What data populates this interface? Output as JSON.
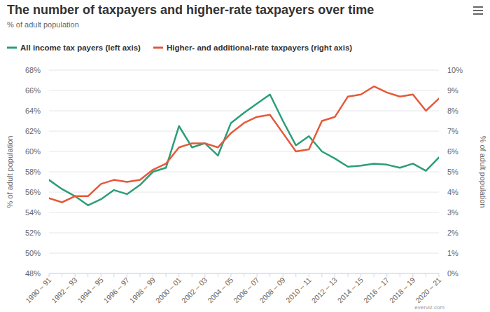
{
  "chart_data": {
    "type": "line",
    "title": "The number of taxpayers and higher-rate taxpayers over time",
    "subtitle": "% of adult population",
    "y_label": "% of adult population",
    "y2_label": "% of adult population",
    "credits": "everviz.com",
    "categories": [
      "1990 – 91",
      null,
      "1992 – 93",
      null,
      "1994 – 95",
      null,
      "1996 – 97",
      null,
      "1998 – 99",
      null,
      "2000 – 01",
      null,
      "2002 – 03",
      null,
      "2004 – 05",
      null,
      "2006 – 07",
      null,
      "2008 – 09",
      null,
      "2010 – 11",
      null,
      "2012 – 13",
      null,
      "2014 – 15",
      null,
      "2016 – 17",
      null,
      "2018 – 19",
      null,
      "2020 – 21"
    ],
    "series": [
      {
        "name": "All income tax payers (left axis)",
        "color": "#2b9e76",
        "line_style": "solid",
        "values": [
          57.2,
          56.3,
          55.6,
          54.7,
          55.3,
          56.2,
          55.8,
          56.7,
          58.0,
          58.4,
          62.5,
          60.4,
          60.8,
          59.6,
          62.8,
          63.8,
          64.7,
          65.6,
          63.0,
          60.6,
          61.5,
          60.0,
          59.3,
          58.5,
          58.6,
          58.8,
          58.7,
          58.4,
          58.8,
          58.1,
          59.4
        ]
      },
      {
        "name": "Higher- and additional-rate taxpayers (right axis)",
        "color": "#e5593a",
        "line_style": "solid",
        "axis": "y2",
        "values": [
          3.7,
          3.5,
          3.8,
          3.8,
          4.4,
          4.6,
          4.5,
          4.6,
          5.1,
          5.4,
          6.2,
          6.4,
          6.4,
          6.2,
          6.9,
          7.4,
          7.7,
          7.8,
          6.9,
          6.0,
          6.1,
          7.5,
          7.7,
          8.7,
          8.8,
          9.2,
          8.9,
          8.7,
          8.8,
          8.0,
          8.6
        ]
      }
    ],
    "ylim": [
      48,
      68
    ],
    "yticks": [
      {
        "value": 48,
        "label": "48%"
      },
      {
        "value": 50,
        "label": "50%"
      },
      {
        "value": 52,
        "label": "52%"
      },
      {
        "value": 54,
        "label": "54%"
      },
      {
        "value": 56,
        "label": "56%"
      },
      {
        "value": 58,
        "label": "58%"
      },
      {
        "value": 60,
        "label": "60%"
      },
      {
        "value": 62,
        "label": "62%"
      },
      {
        "value": 64,
        "label": "64%"
      },
      {
        "value": 66,
        "label": "66%"
      },
      {
        "value": 68,
        "label": "68%"
      }
    ],
    "y2lim": [
      0,
      10
    ],
    "y2ticks": [
      {
        "value": 0,
        "label": "0%"
      },
      {
        "value": 1,
        "label": "1%"
      },
      {
        "value": 2,
        "label": "2%"
      },
      {
        "value": 3,
        "label": "3%"
      },
      {
        "value": 4,
        "label": "4%"
      },
      {
        "value": 5,
        "label": "5%"
      },
      {
        "value": 6,
        "label": "6%"
      },
      {
        "value": 7,
        "label": "7%"
      },
      {
        "value": 8,
        "label": "8%"
      },
      {
        "value": 9,
        "label": "9%"
      },
      {
        "value": 10,
        "label": "10%"
      }
    ],
    "grid": true,
    "legend": "top-left"
  }
}
